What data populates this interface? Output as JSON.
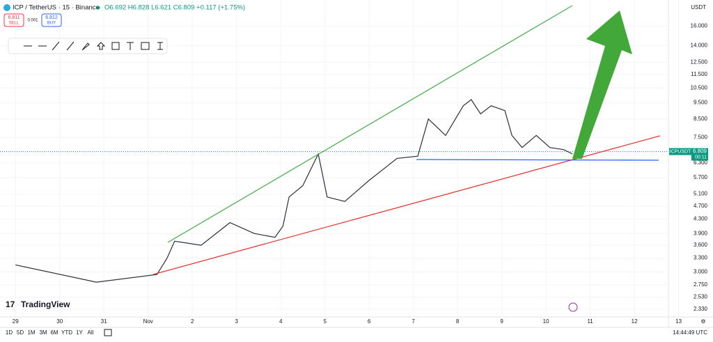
{
  "header": {
    "symbol": "ICP / TetherUS · 15 · Binance",
    "ohlc": "O6.692 H6.828 L6.621 C6.809 +0.117 (+1.75%)"
  },
  "order": {
    "sell_price": "6.811",
    "sell": "SELL",
    "qty": "0.001",
    "buy_price": "6.812",
    "buy": "BUY"
  },
  "currency": "USDT",
  "logo": "TradingView",
  "ticker_tag": "ICPUSDT",
  "countdown": "00:11",
  "timeframes": [
    "1D",
    "5D",
    "1M",
    "3M",
    "6M",
    "YTD",
    "1Y",
    "All"
  ],
  "clock": "14:44:49 UTC",
  "chart_data": {
    "type": "line",
    "color": "#2a2e39",
    "log_scale": true,
    "last_price": 6.809,
    "last_color": "#089981",
    "x": [
      0,
      1.83,
      3.2,
      3.43,
      3.6,
      4.2,
      4.85,
      5.4,
      5.87,
      6.05,
      6.19,
      6.5,
      6.85,
      7.05,
      7.45,
      8.0,
      8.63,
      9.1,
      9.34,
      9.73,
      10.13,
      10.31,
      10.52,
      10.76,
      11.07,
      11.23,
      11.46,
      11.78,
      12.09,
      12.4,
      12.6
    ],
    "values": [
      3.15,
      2.8,
      2.95,
      3.3,
      3.7,
      3.6,
      4.2,
      3.9,
      3.8,
      4.1,
      5.0,
      5.4,
      6.7,
      5.0,
      4.85,
      5.6,
      6.5,
      6.6,
      8.5,
      7.6,
      9.3,
      9.7,
      8.8,
      9.3,
      9.0,
      7.6,
      7.0,
      7.6,
      7.0,
      6.9,
      6.7
    ],
    "xlim": [
      -0.35,
      14.77
    ],
    "xticks": [
      {
        "value": 0,
        "label": "29"
      },
      {
        "value": 1,
        "label": "30"
      },
      {
        "value": 2,
        "label": "31"
      },
      {
        "value": 3,
        "label": "Nov"
      },
      {
        "value": 4,
        "label": "2"
      },
      {
        "value": 5,
        "label": "3"
      },
      {
        "value": 6,
        "label": "4"
      },
      {
        "value": 7,
        "label": "5"
      },
      {
        "value": 8,
        "label": "6"
      },
      {
        "value": 9,
        "label": "7"
      },
      {
        "value": 10,
        "label": "8"
      },
      {
        "value": 11,
        "label": "9"
      },
      {
        "value": 12,
        "label": "10"
      },
      {
        "value": 13,
        "label": "11"
      },
      {
        "value": 14,
        "label": "12"
      },
      {
        "value": 15,
        "label": "13"
      }
    ],
    "ylim": [
      2.2,
      19.1
    ],
    "yticks": [
      {
        "value": 2.33,
        "label": "2.330"
      },
      {
        "value": 2.53,
        "label": "2.530"
      },
      {
        "value": 2.75,
        "label": "2.750"
      },
      {
        "value": 3,
        "label": "3.000"
      },
      {
        "value": 3.3,
        "label": "3.300"
      },
      {
        "value": 3.6,
        "label": "3.600"
      },
      {
        "value": 3.9,
        "label": "3.900"
      },
      {
        "value": 4.3,
        "label": "4.300"
      },
      {
        "value": 4.7,
        "label": "4.700"
      },
      {
        "value": 5.1,
        "label": "5.100"
      },
      {
        "value": 5.7,
        "label": "5.700"
      },
      {
        "value": 6.3,
        "label": "6.300"
      },
      {
        "value": 7.5,
        "label": "7.500"
      },
      {
        "value": 8.5,
        "label": "8.500"
      },
      {
        "value": 9.5,
        "label": "9.500"
      },
      {
        "value": 10.5,
        "label": "10.500"
      },
      {
        "value": 11.5,
        "label": "11.500"
      },
      {
        "value": 12.5,
        "label": "12.500"
      },
      {
        "value": 14,
        "label": "14.000"
      },
      {
        "value": 16,
        "label": "16.000"
      }
    ]
  }
}
